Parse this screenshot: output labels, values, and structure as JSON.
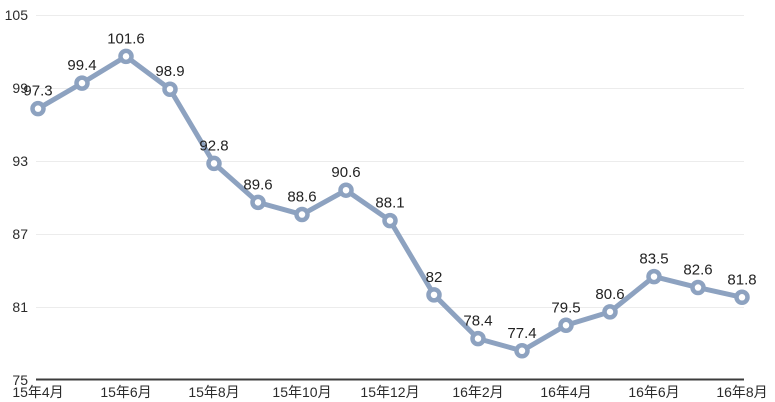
{
  "chart_data": {
    "type": "line",
    "title": "",
    "xlabel": "",
    "ylabel": "",
    "values": [
      97.3,
      99.4,
      101.6,
      98.9,
      92.8,
      89.6,
      88.6,
      90.6,
      88.1,
      82,
      78.4,
      77.4,
      79.5,
      80.6,
      83.5,
      82.6,
      81.8
    ],
    "point_labels": [
      "97.3",
      "99.4",
      "101.6",
      "98.9",
      "92.8",
      "89.6",
      "88.6",
      "90.6",
      "88.1",
      "82",
      "78.4",
      "77.4",
      "79.5",
      "80.6",
      "83.5",
      "82.6",
      "81.8"
    ],
    "x_tick_labels": [
      "15年4月",
      "15年6月",
      "15年8月",
      "15年10月",
      "15年12月",
      "16年2月",
      "16年4月",
      "16年6月",
      "16年8月"
    ],
    "x_tick_every": 2,
    "y_ticks": [
      75,
      81,
      87,
      93,
      99,
      105
    ],
    "ylim": [
      75,
      105
    ],
    "grid": true,
    "legend": "none",
    "colors": {
      "line": "#8DA2C0",
      "marker_fill": "#FFFFFF",
      "grid": "#ECECEC",
      "axis": "#3C3C3C",
      "tick_text": "#2B2B2B",
      "label_text": "#222222",
      "background": "#FFFFFF"
    }
  }
}
